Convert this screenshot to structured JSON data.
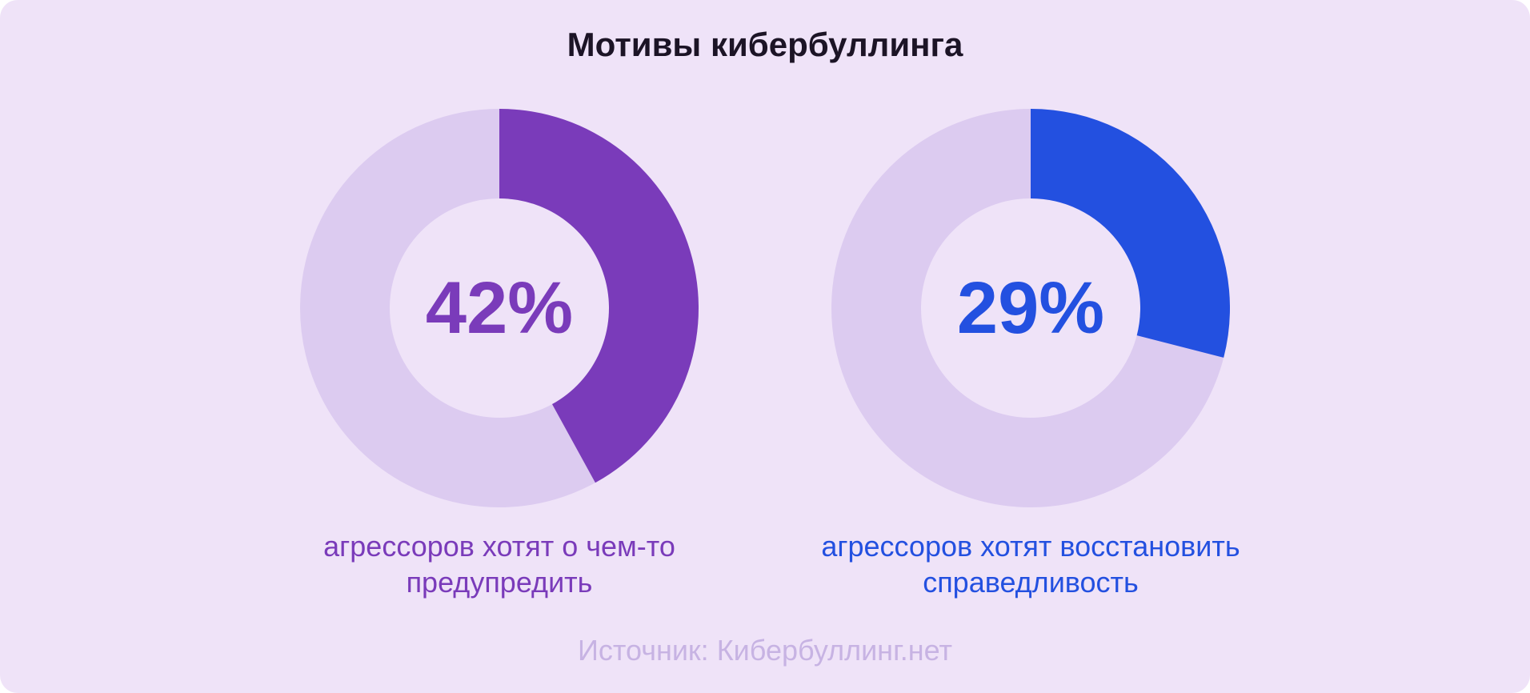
{
  "title": "Мотивы кибербуллинга",
  "source": "Источник: Кибербуллинг.нет",
  "chart_data": [
    {
      "type": "donut",
      "values": [
        42
      ],
      "value_labels": [
        "42%"
      ],
      "caption": "агрессоров хотят о чем-то предупредить",
      "color": "#7a3bba",
      "track_color": "#dccbf0"
    },
    {
      "type": "donut",
      "values": [
        29
      ],
      "value_labels": [
        "29%"
      ],
      "caption": "агрессоров хотят восстановить справедливость",
      "color": "#2350e0",
      "track_color": "#dccbf0"
    }
  ]
}
